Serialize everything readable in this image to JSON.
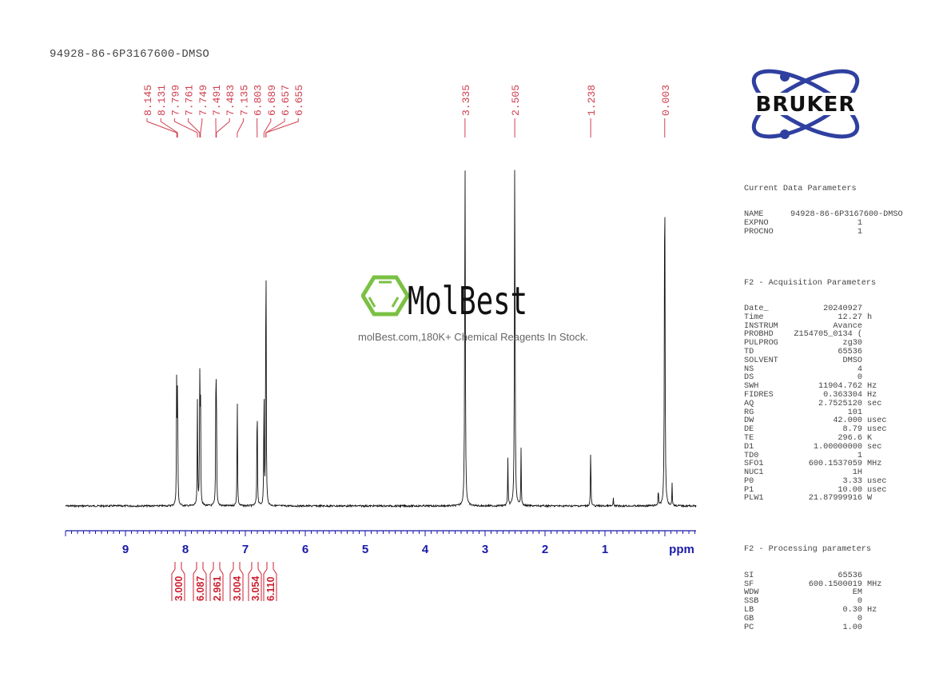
{
  "title": "94928-86-6P3167600-DMSO",
  "watermark": {
    "brand": "MolBest",
    "tagline": "molBest.com,180K+ Chemical Reagents In Stock.",
    "accent_color": "#7ac143"
  },
  "logo": {
    "text": "BRUKER",
    "orbit_color": "#3040a0"
  },
  "colors": {
    "peak_label": "#d04050",
    "axis": "#1a1aa8",
    "spectrum": "#111111",
    "integral": "#cc2030"
  },
  "parameters": {
    "current": {
      "heading": "Current Data Parameters",
      "rows": [
        {
          "k": "NAME",
          "v": "94928-86-6P3167600-DMSO",
          "u": ""
        },
        {
          "k": "EXPNO",
          "v": "1",
          "u": ""
        },
        {
          "k": "PROCNO",
          "v": "1",
          "u": ""
        }
      ]
    },
    "acquisition": {
      "heading": "F2 - Acquisition Parameters",
      "rows": [
        {
          "k": "Date_",
          "v": "20240927",
          "u": ""
        },
        {
          "k": "Time",
          "v": "12.27",
          "u": "h"
        },
        {
          "k": "INSTRUM",
          "v": "Avance",
          "u": ""
        },
        {
          "k": "PROBHD",
          "v": "Z154705_0134 (",
          "u": ""
        },
        {
          "k": "PULPROG",
          "v": "zg30",
          "u": ""
        },
        {
          "k": "TD",
          "v": "65536",
          "u": ""
        },
        {
          "k": "SOLVENT",
          "v": "DMSO",
          "u": ""
        },
        {
          "k": "NS",
          "v": "4",
          "u": ""
        },
        {
          "k": "DS",
          "v": "0",
          "u": ""
        },
        {
          "k": "SWH",
          "v": "11904.762",
          "u": "Hz"
        },
        {
          "k": "FIDRES",
          "v": "0.363304",
          "u": "Hz"
        },
        {
          "k": "AQ",
          "v": "2.7525120",
          "u": "sec"
        },
        {
          "k": "RG",
          "v": "101",
          "u": ""
        },
        {
          "k": "DW",
          "v": "42.000",
          "u": "usec"
        },
        {
          "k": "DE",
          "v": "8.79",
          "u": "usec"
        },
        {
          "k": "TE",
          "v": "296.6",
          "u": "K"
        },
        {
          "k": "D1",
          "v": "1.00000000",
          "u": "sec"
        },
        {
          "k": "TD0",
          "v": "1",
          "u": ""
        },
        {
          "k": "SFO1",
          "v": "600.1537059",
          "u": "MHz"
        },
        {
          "k": "NUC1",
          "v": "1H",
          "u": ""
        },
        {
          "k": "P0",
          "v": "3.33",
          "u": "usec"
        },
        {
          "k": "P1",
          "v": "10.00",
          "u": "usec"
        },
        {
          "k": "PLW1",
          "v": "21.87999916",
          "u": "W"
        }
      ]
    },
    "processing": {
      "heading": "F2 - Processing parameters",
      "rows": [
        {
          "k": "SI",
          "v": "65536",
          "u": ""
        },
        {
          "k": "SF",
          "v": "600.1500019",
          "u": "MHz"
        },
        {
          "k": "WDW",
          "v": "EM",
          "u": ""
        },
        {
          "k": "SSB",
          "v": "0",
          "u": ""
        },
        {
          "k": "LB",
          "v": "0.30",
          "u": "Hz"
        },
        {
          "k": "GB",
          "v": "0",
          "u": ""
        },
        {
          "k": "PC",
          "v": "1.00",
          "u": ""
        }
      ]
    }
  },
  "chart_data": {
    "type": "line",
    "title": "94928-86-6P3167600-DMSO",
    "xlabel": "ppm",
    "ylabel": "",
    "xlim": [
      10.0,
      -0.5
    ],
    "x_reversed": true,
    "grid": false,
    "x_ticks": [
      "9",
      "8",
      "7",
      "6",
      "5",
      "4",
      "3",
      "2",
      "1"
    ],
    "x_tick_values": [
      9,
      8,
      7,
      6,
      5,
      4,
      3,
      2,
      1
    ],
    "peak_labels": [
      "8.145",
      "8.131",
      "7.799",
      "7.761",
      "7.749",
      "7.491",
      "7.483",
      "7.135",
      "6.803",
      "6.689",
      "6.657",
      "6.655",
      "3.335",
      "2.505",
      "1.238",
      "0.003"
    ],
    "peaks": [
      {
        "ppm": 8.145,
        "rel_height": 0.38
      },
      {
        "ppm": 8.131,
        "rel_height": 0.36
      },
      {
        "ppm": 7.799,
        "rel_height": 0.3
      },
      {
        "ppm": 7.761,
        "rel_height": 0.34
      },
      {
        "ppm": 7.749,
        "rel_height": 0.35
      },
      {
        "ppm": 7.491,
        "rel_height": 0.33
      },
      {
        "ppm": 7.483,
        "rel_height": 0.3
      },
      {
        "ppm": 7.135,
        "rel_height": 0.32
      },
      {
        "ppm": 6.803,
        "rel_height": 0.34
      },
      {
        "ppm": 6.689,
        "rel_height": 0.35
      },
      {
        "ppm": 6.657,
        "rel_height": 0.44
      },
      {
        "ppm": 6.655,
        "rel_height": 0.4
      },
      {
        "ppm": 3.335,
        "rel_height": 1.0
      },
      {
        "ppm": 2.505,
        "rel_height": 1.0
      },
      {
        "ppm": 2.62,
        "rel_height": 0.13
      },
      {
        "ppm": 2.4,
        "rel_height": 0.16
      },
      {
        "ppm": 1.238,
        "rel_height": 0.17
      },
      {
        "ppm": 0.86,
        "rel_height": 0.02
      },
      {
        "ppm": 0.003,
        "rel_height": 1.0
      },
      {
        "ppm": 0.11,
        "rel_height": 0.05
      },
      {
        "ppm": -0.12,
        "rel_height": 0.06
      }
    ],
    "integrals": [
      {
        "from": 8.2,
        "to": 8.08,
        "value": "3.000"
      },
      {
        "from": 7.85,
        "to": 7.72,
        "value": "6.087"
      },
      {
        "from": 7.55,
        "to": 7.43,
        "value": "2.961"
      },
      {
        "from": 7.2,
        "to": 7.08,
        "value": "3.004"
      },
      {
        "from": 6.86,
        "to": 6.74,
        "value": "3.054"
      },
      {
        "from": 6.73,
        "to": 6.6,
        "value": "6.110"
      }
    ]
  }
}
